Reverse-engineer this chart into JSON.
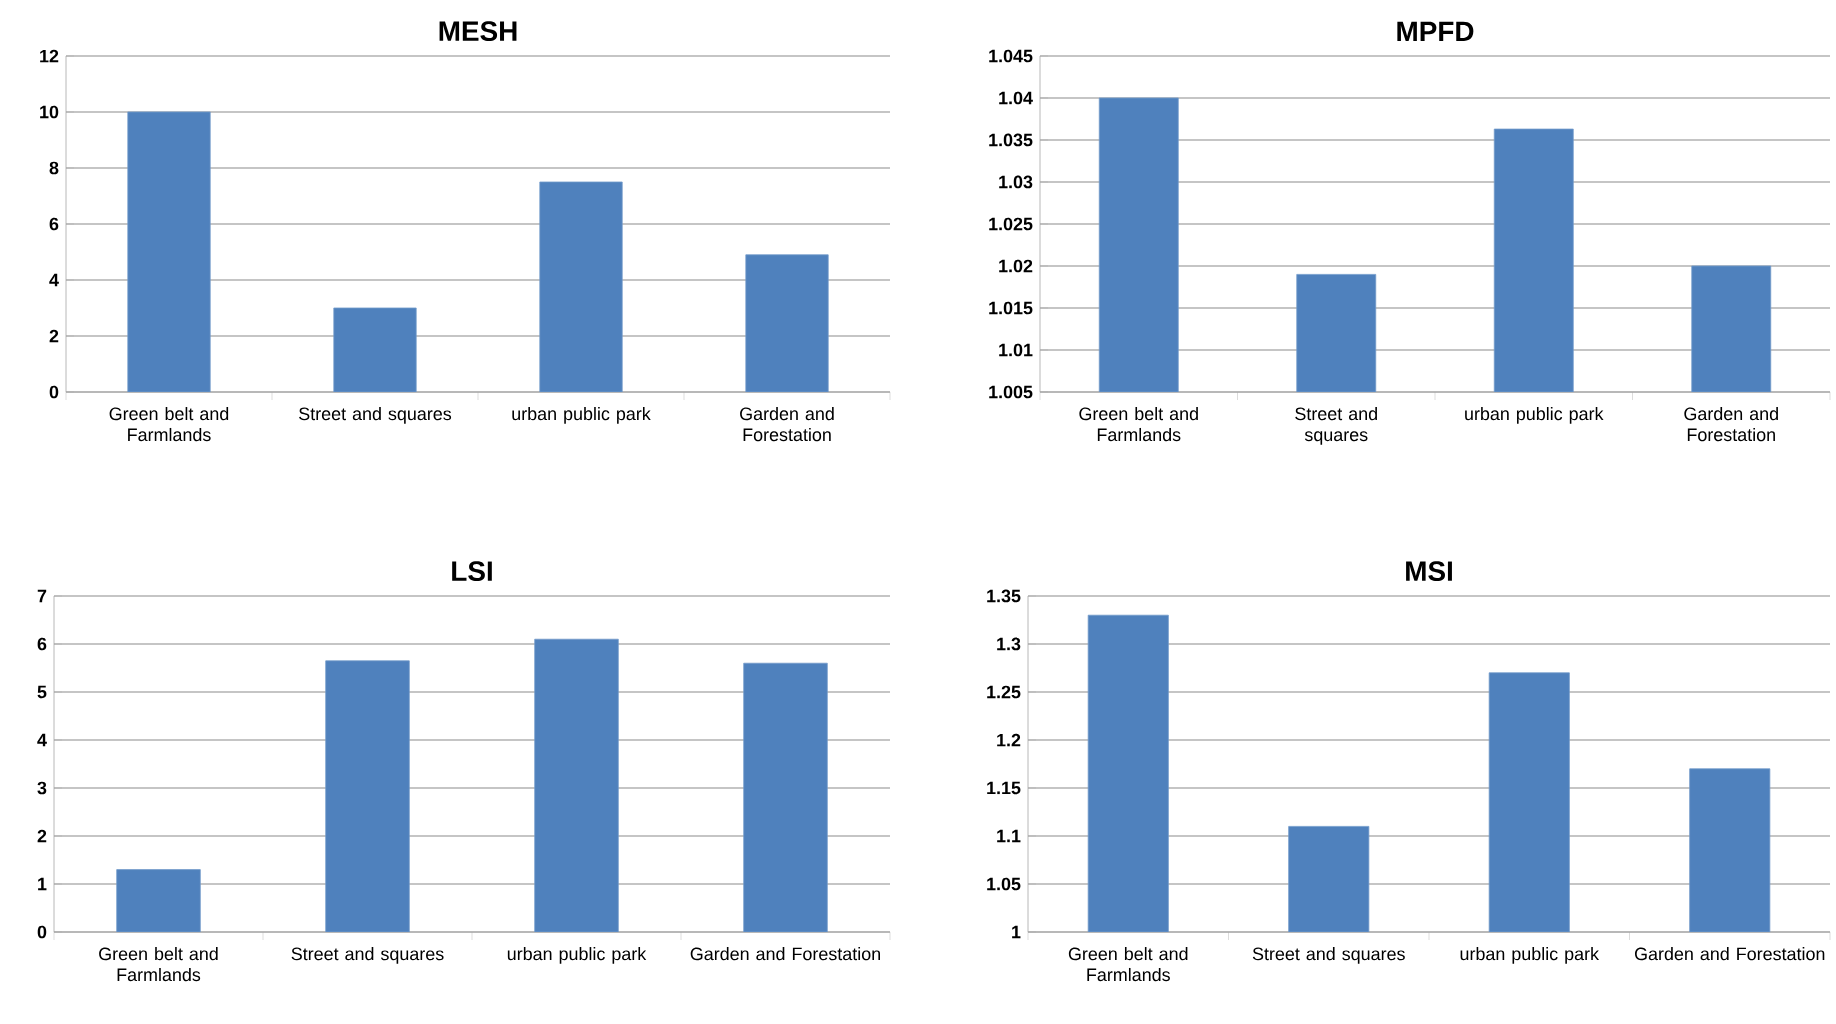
{
  "chart_data": [
    {
      "type": "bar",
      "title": "MESH",
      "categories": [
        "Green belt and Farmlands",
        "Street and squares",
        "urban public park",
        "Garden and Forestation"
      ],
      "values": [
        10,
        3.0,
        7.5,
        4.9
      ],
      "color": "#4f81bd",
      "ylim": [
        0,
        12
      ],
      "yticks": [
        0,
        2,
        4,
        6,
        8,
        10,
        12
      ],
      "grid": "y"
    },
    {
      "type": "bar",
      "title": "MPFD",
      "categories": [
        "Green belt and Farmlands",
        "Street and squares",
        "urban public park",
        "Garden and Forestation"
      ],
      "values": [
        1.04,
        1.019,
        1.0363,
        1.02
      ],
      "color": "#4f81bd",
      "ylim": [
        1.005,
        1.045
      ],
      "yticks": [
        1.005,
        1.01,
        1.015,
        1.02,
        1.025,
        1.03,
        1.035,
        1.04,
        1.045
      ],
      "grid": "y"
    },
    {
      "type": "bar",
      "title": "LSI",
      "categories": [
        "Green belt and Farmlands",
        "Street and squares",
        "urban public park",
        "Garden and Forestation"
      ],
      "values": [
        1.3,
        5.65,
        6.1,
        5.6
      ],
      "color": "#4f81bd",
      "ylim": [
        0,
        7
      ],
      "yticks": [
        0,
        1,
        2,
        3,
        4,
        5,
        6,
        7
      ],
      "grid": "y"
    },
    {
      "type": "bar",
      "title": "MSI",
      "categories": [
        "Green belt and Farmlands",
        "Street and squares",
        "urban public park",
        "Garden and Forestation"
      ],
      "values": [
        1.33,
        1.11,
        1.27,
        1.17
      ],
      "color": "#4f81bd",
      "ylim": [
        1,
        1.35
      ],
      "yticks": [
        1,
        1.05,
        1.1,
        1.15,
        1.2,
        1.25,
        1.3,
        1.35
      ],
      "grid": "y"
    }
  ]
}
